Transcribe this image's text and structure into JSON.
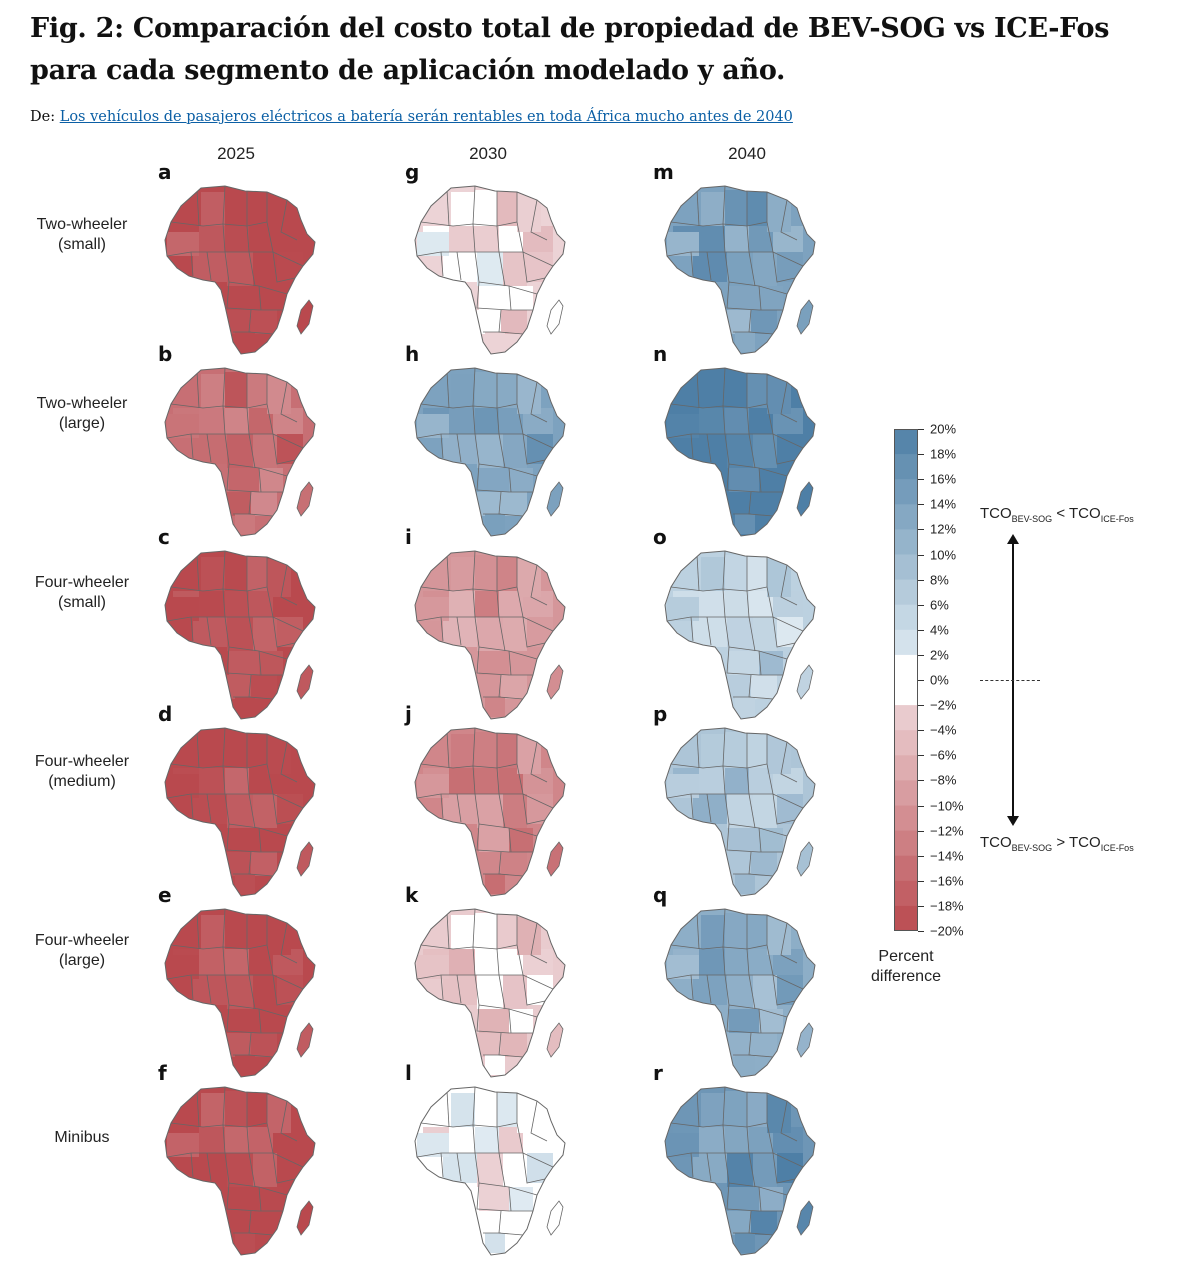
{
  "header": {
    "title": "Fig. 2: Comparación del costo total de propiedad de BEV-SOG vs ICE-Fos para cada segmento de aplicación modelado y año.",
    "source_prefix": "De:",
    "source_link": "Los vehículos de pasajeros eléctricos a batería serán rentables en toda África mucho antes de 2040"
  },
  "colors": {
    "blue_max": "#4e7fa6",
    "white": "#ffffff",
    "red_max": "#b9494e",
    "border": "#666666"
  },
  "chart_data": {
    "type": "heatmap",
    "subtype": "choropleth-grid",
    "columns": [
      "2025",
      "2030",
      "2040"
    ],
    "rows": [
      "Two-wheeler\n(small)",
      "Two-wheeler\n(large)",
      "Four-wheeler\n(small)",
      "Four-wheeler\n(medium)",
      "Four-wheeler\n(large)",
      "Minibus"
    ],
    "row_lines": [
      [
        "Two-wheeler",
        "(small)"
      ],
      [
        "Two-wheeler",
        "(large)"
      ],
      [
        "Four-wheeler",
        "(small)"
      ],
      [
        "Four-wheeler",
        "(medium)"
      ],
      [
        "Four-wheeler",
        "(large)"
      ],
      [
        "Minibus",
        ""
      ]
    ],
    "panel_letters": [
      [
        "a",
        "g",
        "m"
      ],
      [
        "b",
        "h",
        "n"
      ],
      [
        "c",
        "i",
        "o"
      ],
      [
        "d",
        "j",
        "p"
      ],
      [
        "e",
        "k",
        "q"
      ],
      [
        "f",
        "l",
        "r"
      ]
    ],
    "approx_median_percent_difference": [
      [
        -20,
        -2,
        14
      ],
      [
        -15,
        14,
        20
      ],
      [
        -20,
        -10,
        6
      ],
      [
        -20,
        -12,
        8
      ],
      [
        -20,
        -3,
        12
      ],
      [
        -20,
        0,
        16
      ]
    ],
    "colorbar": {
      "min": -20,
      "max": 20,
      "step": 2,
      "tick_labels": [
        "20%",
        "18%",
        "16%",
        "14%",
        "12%",
        "10%",
        "8%",
        "6%",
        "4%",
        "2%",
        "0%",
        "−2%",
        "−4%",
        "−6%",
        "−8%",
        "−10%",
        "−12%",
        "−14%",
        "−16%",
        "−18%",
        "−20%"
      ],
      "title_lines": [
        "Percent",
        "difference"
      ]
    },
    "annotations": {
      "upper": {
        "a": "TCO",
        "a_sub": "BEV-SOG",
        "op": " < ",
        "b": "TCO",
        "b_sub": "ICE-Fos"
      },
      "lower": {
        "a": "TCO",
        "a_sub": "BEV-SOG",
        "op": " > ",
        "b": "TCO",
        "b_sub": "ICE-Fos"
      }
    }
  }
}
